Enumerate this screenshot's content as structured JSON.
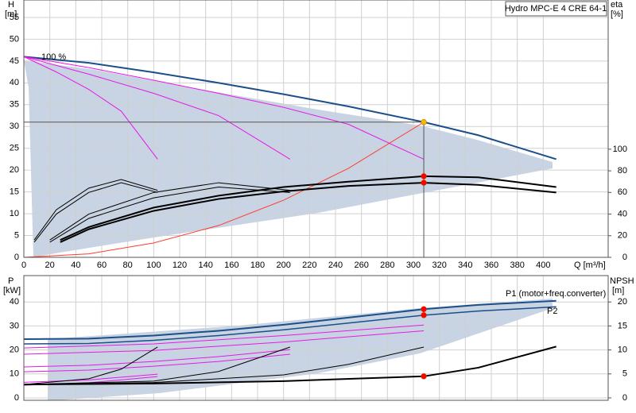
{
  "chart_data": [
    {
      "type": "line",
      "title": "Hydro MPC-E 4 CRE 64-1",
      "x_label": "Q [m³/h]",
      "y_label": "H",
      "y_unit": "[m]",
      "y2_label": "eta",
      "y2_unit": "[%]",
      "annotation": "100 %",
      "xlim": [
        0,
        450
      ],
      "xticks": [
        0,
        20,
        40,
        60,
        80,
        100,
        120,
        140,
        160,
        180,
        200,
        220,
        240,
        260,
        280,
        300,
        320,
        340,
        360,
        380,
        400
      ],
      "ylim": [
        0,
        59
      ],
      "yticks": [
        0,
        5,
        10,
        15,
        20,
        25,
        30,
        35,
        40,
        45,
        50,
        55
      ],
      "y2lim": [
        0,
        238
      ],
      "y2ticks": [
        0,
        20,
        40,
        60,
        80,
        100
      ],
      "grid": true,
      "series": [
        {
          "color": "#1b4f8a",
          "x": [
            0,
            50,
            100,
            150,
            200,
            250,
            308,
            350,
            410
          ],
          "values": [
            46,
            44.6,
            42.4,
            40,
            37.4,
            34.6,
            31,
            28,
            22.5
          ]
        },
        {
          "color": "#e619e6",
          "x": [
            0,
            50,
            100,
            150,
            200,
            250,
            308
          ],
          "values": [
            46,
            43.5,
            40.6,
            37.6,
            34.4,
            30.5,
            22.5
          ]
        },
        {
          "color": "#e619e6",
          "x": [
            0,
            50,
            100,
            150,
            205
          ],
          "values": [
            46,
            42,
            37.6,
            32.5,
            22.5
          ]
        },
        {
          "color": "#e619e6",
          "x": [
            0,
            25,
            50,
            75,
            103
          ],
          "values": [
            46,
            42.5,
            38.5,
            33.5,
            22.5
          ]
        },
        {
          "color": "#ff3b2f",
          "x": [
            0,
            50,
            100,
            150,
            200,
            250,
            308
          ],
          "values": [
            0,
            0.8,
            3.3,
            7.3,
            13.1,
            20.4,
            31
          ]
        },
        {
          "color": "#000000",
          "axis": "y2",
          "x": [
            28,
            50,
            100,
            150,
            200,
            250,
            308,
            350,
            410
          ],
          "values": [
            14,
            26,
            43,
            54,
            61,
            66,
            69,
            67,
            60
          ]
        },
        {
          "color": "#000000",
          "axis": "y2",
          "x": [
            28,
            50,
            100,
            150,
            200,
            250,
            308,
            350,
            410
          ],
          "values": [
            16,
            28,
            46,
            57,
            65,
            70,
            75,
            74,
            65
          ]
        },
        {
          "color": "#000000",
          "axis": "y2",
          "x": [
            20,
            50,
            100,
            150,
            205
          ],
          "values": [
            14,
            36,
            55,
            65,
            60
          ]
        },
        {
          "color": "#000000",
          "axis": "y2",
          "x": [
            20,
            50,
            100,
            150,
            205
          ],
          "values": [
            16,
            40,
            60,
            69,
            62
          ]
        },
        {
          "color": "#000000",
          "axis": "y2",
          "x": [
            8,
            25,
            50,
            75,
            103
          ],
          "values": [
            14,
            40,
            60,
            69,
            60
          ]
        },
        {
          "color": "#000000",
          "axis": "y2",
          "x": [
            8,
            25,
            50,
            75,
            103
          ],
          "values": [
            16,
            44,
            64,
            72,
            62
          ]
        }
      ],
      "points": [
        {
          "x": 308,
          "y": 31,
          "color": "#f5b800",
          "guides": true
        },
        {
          "x": 308,
          "y": 75,
          "axis": "y2",
          "color": "#ff0000"
        },
        {
          "x": 308,
          "y": 69,
          "axis": "y2",
          "color": "#ff0000"
        }
      ]
    },
    {
      "type": "line",
      "y_label": "P",
      "y_unit": "[kW]",
      "y2_label": "NPSH",
      "y2_unit": "[m]",
      "xlim": [
        0,
        450
      ],
      "xticks": [
        0,
        20,
        40,
        60,
        80,
        100,
        120,
        140,
        160,
        180,
        200,
        220,
        240,
        260,
        280,
        300,
        320,
        340,
        360,
        380,
        400
      ],
      "ylim": [
        -1,
        51
      ],
      "yticks": [
        0,
        10,
        20,
        30,
        40
      ],
      "y2lim": [
        -0.5,
        25.5
      ],
      "y2ticks": [
        0,
        5,
        10,
        15,
        20
      ],
      "grid": true,
      "series": [
        {
          "name": "P1 (motor+freq.converter)",
          "color": "#1b4f8a",
          "x": [
            0,
            50,
            100,
            150,
            200,
            250,
            308,
            350,
            410
          ],
          "values": [
            24.5,
            24.7,
            26,
            28,
            30.5,
            33.5,
            37,
            38.8,
            40.5
          ]
        },
        {
          "name": "P2",
          "color": "#1b4f8a",
          "x": [
            0,
            50,
            100,
            150,
            200,
            250,
            308,
            350,
            410
          ],
          "values": [
            22.5,
            22.7,
            24,
            26,
            28.4,
            31.2,
            34.5,
            36.2,
            38
          ]
        },
        {
          "color": "#e619e6",
          "x": [
            0,
            100,
            200,
            308
          ],
          "values": [
            20.8,
            22.5,
            26,
            30.4
          ]
        },
        {
          "color": "#e619e6",
          "x": [
            0,
            100,
            200,
            308
          ],
          "values": [
            18.2,
            19.8,
            23.3,
            28
          ]
        },
        {
          "color": "#e619e6",
          "x": [
            0,
            50,
            100,
            150,
            205
          ],
          "values": [
            12.9,
            13.6,
            15.2,
            17.2,
            20.1
          ]
        },
        {
          "color": "#e619e6",
          "x": [
            0,
            50,
            100,
            150,
            205
          ],
          "values": [
            10.9,
            11.6,
            13.2,
            15.2,
            18.2
          ]
        },
        {
          "color": "#e619e6",
          "x": [
            0,
            50,
            103
          ],
          "values": [
            6.5,
            7.5,
            9.9
          ]
        },
        {
          "color": "#e619e6",
          "x": [
            0,
            50,
            103
          ],
          "values": [
            5.3,
            6.3,
            8.9
          ]
        },
        {
          "color": "#000000",
          "axis": "y2",
          "x": [
            0,
            100,
            200,
            308,
            350,
            410
          ],
          "values": [
            2.8,
            3,
            3.5,
            4.5,
            6.3,
            10.7
          ]
        },
        {
          "color": "#000000",
          "axis": "y2",
          "x": [
            0,
            100,
            200,
            250,
            308
          ],
          "values": [
            2.8,
            3.2,
            4.8,
            7,
            10.6
          ]
        },
        {
          "color": "#000000",
          "axis": "y2",
          "x": [
            0,
            100,
            150,
            205
          ],
          "values": [
            2.8,
            3.5,
            5.5,
            10.6
          ]
        },
        {
          "color": "#000000",
          "axis": "y2",
          "x": [
            0,
            50,
            75,
            103
          ],
          "values": [
            2.8,
            4,
            6,
            10.6
          ]
        }
      ],
      "points": [
        {
          "x": 308,
          "y": 37,
          "color": "#ff0000"
        },
        {
          "x": 308,
          "y": 34.5,
          "color": "#ff0000"
        },
        {
          "x": 308,
          "y": 4.5,
          "axis": "y2",
          "color": "#ff0000"
        }
      ]
    }
  ]
}
